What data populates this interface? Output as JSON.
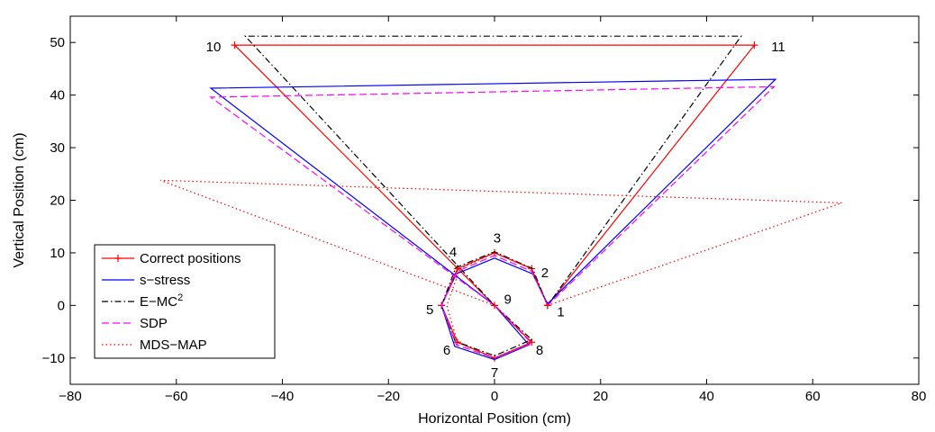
{
  "chart_data": {
    "type": "line",
    "xlabel": "Horizontal Position (cm)",
    "ylabel": "Vertical Position (cm)",
    "xlim": [
      -80,
      80
    ],
    "ylim": [
      -15,
      55
    ],
    "xticks": [
      -80,
      -60,
      -40,
      -20,
      0,
      20,
      40,
      60,
      80
    ],
    "yticks": [
      -10,
      0,
      10,
      20,
      30,
      40,
      50
    ],
    "x_tick_labels": [
      "−80",
      "−60",
      "−40",
      "−20",
      "0",
      "20",
      "40",
      "60",
      "80"
    ],
    "y_tick_labels": [
      "−10",
      "0",
      "10",
      "20",
      "30",
      "40",
      "50"
    ],
    "grid": false,
    "legend_position": "bottom-left",
    "point_labels": [
      {
        "text": "1",
        "x": 12.5,
        "y": -1.2
      },
      {
        "text": "2",
        "x": 9.5,
        "y": 6.2
      },
      {
        "text": "3",
        "x": 0.5,
        "y": 12.8
      },
      {
        "text": "4",
        "x": -7.8,
        "y": 10.2
      },
      {
        "text": "5",
        "x": -12.2,
        "y": -0.8
      },
      {
        "text": "6",
        "x": -9,
        "y": -8.5
      },
      {
        "text": "7",
        "x": 0,
        "y": -12.8
      },
      {
        "text": "8",
        "x": 8.5,
        "y": -8.5
      },
      {
        "text": "9",
        "x": 2.5,
        "y": 1.2
      },
      {
        "text": "10",
        "x": -53,
        "y": 49.2
      },
      {
        "text": "11",
        "x": 53.5,
        "y": 49.2
      }
    ],
    "series": [
      {
        "name": "Correct positions",
        "color": "#ff0000",
        "dash": "solid",
        "marker": "plus",
        "x": [
          10,
          7,
          0,
          -7,
          -10,
          -7,
          0,
          7,
          0,
          -49,
          49,
          10
        ],
        "y": [
          0,
          7,
          10,
          7,
          0,
          -7,
          -10,
          -7,
          0,
          49.5,
          49.5,
          0
        ]
      },
      {
        "name": "s−stress",
        "color": "#0000ff",
        "dash": "solid",
        "marker": "none",
        "x": [
          10,
          7.2,
          0,
          -7.2,
          -10,
          -7.5,
          0,
          6.5,
          0,
          -53.5,
          53,
          10
        ],
        "y": [
          0.3,
          6,
          9,
          6,
          0,
          -7.8,
          -10.3,
          -7.5,
          0,
          41.3,
          43,
          0.3
        ]
      },
      {
        "name": "E−MC",
        "name_sup": "2",
        "color": "#000000",
        "dash": "dashdot",
        "marker": "none",
        "x": [
          10,
          7.2,
          0,
          -7.3,
          -10,
          -7.4,
          0,
          7,
          0,
          -47,
          46.5,
          10
        ],
        "y": [
          0,
          7,
          10.2,
          7.2,
          0,
          -6.8,
          -9.6,
          -6.5,
          0,
          51.2,
          51.2,
          0
        ]
      },
      {
        "name": "SDP",
        "color": "#ff00ff",
        "dash": "dashed",
        "marker": "none",
        "x": [
          10,
          7,
          0,
          -7,
          -10,
          -7.2,
          0,
          7,
          0,
          -53.5,
          52.7,
          10
        ],
        "y": [
          0,
          6.5,
          9.5,
          6.5,
          0,
          -7.5,
          -10,
          -7.2,
          0,
          39.6,
          41.6,
          0
        ]
      },
      {
        "name": "MDS−MAP",
        "color": "#ff0000",
        "dash": "dotted",
        "marker": "none",
        "x": [
          10,
          7,
          0,
          -6.5,
          -9,
          -7,
          0,
          7,
          0,
          -63,
          65.5,
          10
        ],
        "y": [
          0,
          7,
          10,
          7,
          0,
          -7,
          -10,
          -7,
          0,
          23.8,
          19.5,
          0
        ]
      }
    ]
  }
}
